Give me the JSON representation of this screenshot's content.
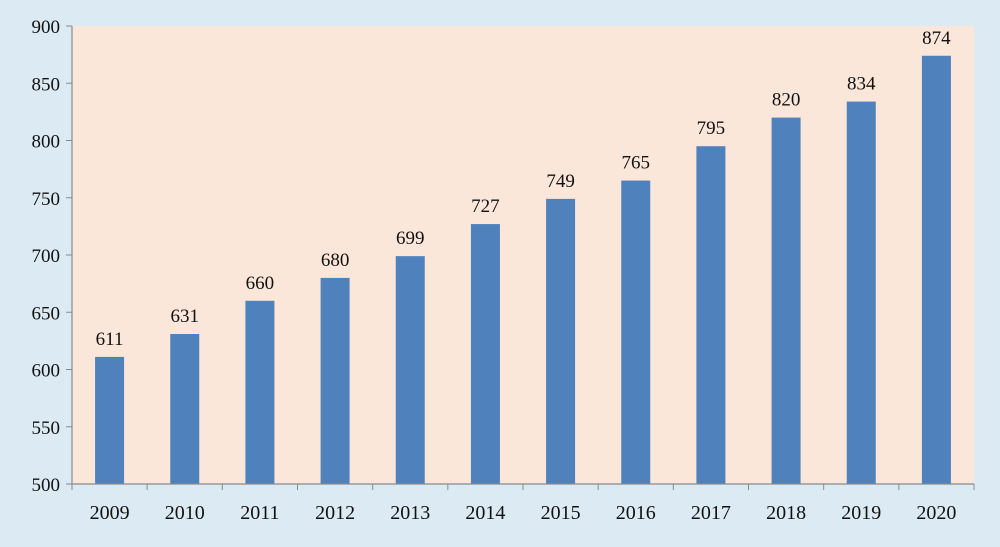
{
  "chart_data": {
    "type": "bar",
    "categories": [
      "2009",
      "2010",
      "2011",
      "2012",
      "2013",
      "2014",
      "2015",
      "2016",
      "2017",
      "2018",
      "2019",
      "2020"
    ],
    "values": [
      611,
      631,
      660,
      680,
      699,
      727,
      749,
      765,
      795,
      820,
      834,
      874
    ],
    "data_labels": [
      "611",
      "631",
      "660",
      "680",
      "699",
      "727",
      "749",
      "765",
      "795",
      "820",
      "834",
      "874"
    ],
    "title": "",
    "xlabel": "",
    "ylabel": "",
    "ylim": [
      500,
      900
    ],
    "yticks": [
      500,
      550,
      600,
      650,
      700,
      750,
      800,
      850,
      900
    ],
    "grid": false,
    "legend": "none",
    "colors": {
      "bar": "#4f81bd",
      "plot_background": "#fbe6da",
      "page_background": "#dcebf3",
      "axis": "#8a8a8a"
    }
  }
}
